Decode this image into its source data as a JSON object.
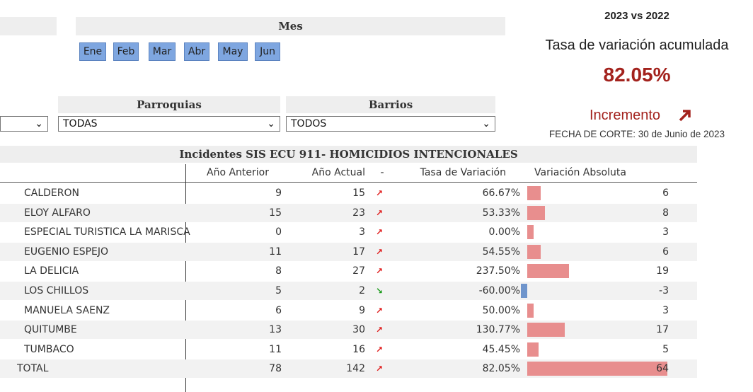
{
  "filters": {
    "month_header": "Mes",
    "months": [
      "Ene",
      "Feb",
      "Mar",
      "Abr",
      "May",
      "Jun"
    ],
    "parroquias": {
      "label": "Parroquias",
      "value": "TODAS"
    },
    "barrios": {
      "label": "Barrios",
      "value": "TODOS"
    }
  },
  "summary": {
    "comparison": "2023 vs 2022",
    "label": "Tasa de variación acumulada",
    "value": "82.05%",
    "trend": "Incremento",
    "cutoff": "FECHA DE CORTE: 30 de Junio de 2023"
  },
  "table": {
    "title": "Incidentes SIS ECU 911- HOMICIDIOS INTENCIONALES",
    "columns": [
      "Año Anterior",
      "Año Actual",
      "-",
      "Tasa de Variación",
      "Variación Absoluta"
    ],
    "rows": [
      {
        "name": "CALDERON",
        "prev": 9,
        "curr": 15,
        "rate": "66.67%",
        "abs": 6
      },
      {
        "name": "ELOY ALFARO",
        "prev": 15,
        "curr": 23,
        "rate": "53.33%",
        "abs": 8
      },
      {
        "name": "ESPECIAL TURISTICA LA MARISCAL",
        "prev": 0,
        "curr": 3,
        "rate": "0.00%",
        "abs": 3
      },
      {
        "name": "EUGENIO ESPEJO",
        "prev": 11,
        "curr": 17,
        "rate": "54.55%",
        "abs": 6
      },
      {
        "name": "LA DELICIA",
        "prev": 8,
        "curr": 27,
        "rate": "237.50%",
        "abs": 19
      },
      {
        "name": "LOS CHILLOS",
        "prev": 5,
        "curr": 2,
        "rate": "-60.00%",
        "abs": -3
      },
      {
        "name": "MANUELA SAENZ",
        "prev": 6,
        "curr": 9,
        "rate": "50.00%",
        "abs": 3
      },
      {
        "name": "QUITUMBE",
        "prev": 13,
        "curr": 30,
        "rate": "130.77%",
        "abs": 17
      },
      {
        "name": "TUMBACO",
        "prev": 11,
        "curr": 16,
        "rate": "45.45%",
        "abs": 5
      }
    ],
    "total": {
      "name": "TOTAL",
      "prev": 78,
      "curr": 142,
      "rate": "82.05%",
      "abs": 64
    }
  }
}
